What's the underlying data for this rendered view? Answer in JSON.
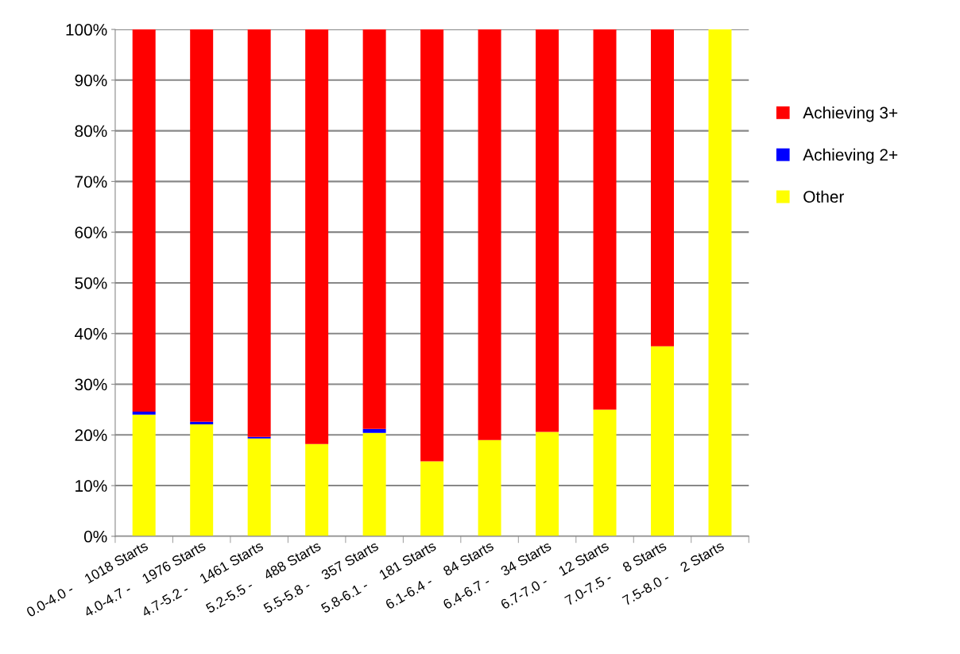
{
  "chart_data": {
    "type": "bar",
    "stacked": true,
    "categories": [
      "0.0-4.0 -    1018 Starts",
      "4.0-4.7 -    1976 Starts",
      "4.7-5.2 -    1461 Starts",
      "5.2-5.5 -    488 Starts",
      "5.5-5.8 -    357 Starts",
      "5.8-6.1 -    181 Starts",
      "6.1-6.4 -    84 Starts",
      "6.4-6.7 -    34 Starts",
      "6.7-7.0 -    12 Starts",
      "7.0-7.5 -    8 Starts",
      "7.5-8.0 -    2 Starts"
    ],
    "series": [
      {
        "name": "Other",
        "color": "#ffff00",
        "values": [
          24.0,
          22.1,
          19.3,
          18.2,
          20.4,
          14.8,
          19.0,
          20.6,
          25.0,
          37.5,
          100
        ]
      },
      {
        "name": "Achieving 2+",
        "color": "#0000ff",
        "values": [
          0.6,
          0.5,
          0.3,
          0,
          0.8,
          0,
          0,
          0,
          0,
          0,
          0
        ]
      },
      {
        "name": "Achieving 3+",
        "color": "#ff0000",
        "values": [
          75.4,
          77.4,
          80.4,
          81.8,
          78.8,
          85.2,
          81.0,
          79.4,
          75.0,
          62.5,
          0
        ]
      }
    ],
    "ylim": [
      0,
      100
    ],
    "yticks": [
      {
        "value": 0,
        "label": "0%"
      },
      {
        "value": 10,
        "label": "10%"
      },
      {
        "value": 20,
        "label": "20%"
      },
      {
        "value": 30,
        "label": "30%"
      },
      {
        "value": 40,
        "label": "40%"
      },
      {
        "value": 50,
        "label": "50%"
      },
      {
        "value": 60,
        "label": "60%"
      },
      {
        "value": 70,
        "label": "70%"
      },
      {
        "value": 80,
        "label": "80%"
      },
      {
        "value": 90,
        "label": "90%"
      },
      {
        "value": 100,
        "label": "100%"
      }
    ],
    "grid": "y",
    "legend": "right"
  }
}
